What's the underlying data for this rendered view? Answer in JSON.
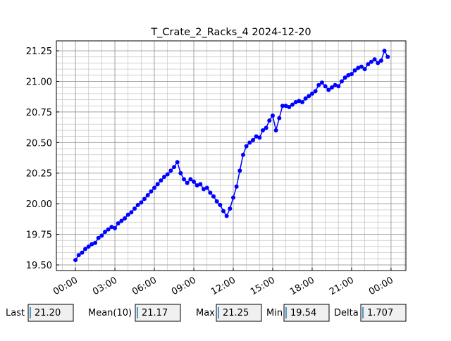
{
  "chart_data": {
    "type": "line",
    "title": "T_Crate_2_Racks_4 2024-12-20",
    "x": [
      0,
      0.25,
      0.5,
      0.75,
      1,
      1.25,
      1.5,
      1.75,
      2,
      2.25,
      2.5,
      2.75,
      3,
      3.25,
      3.5,
      3.75,
      4,
      4.25,
      4.5,
      4.75,
      5,
      5.25,
      5.5,
      5.75,
      6,
      6.25,
      6.5,
      6.75,
      7,
      7.25,
      7.5,
      7.75,
      8,
      8.25,
      8.5,
      8.75,
      9,
      9.25,
      9.5,
      9.75,
      10,
      10.25,
      10.5,
      10.75,
      11,
      11.25,
      11.5,
      11.75,
      12,
      12.25,
      12.5,
      12.75,
      13,
      13.25,
      13.5,
      13.75,
      14,
      14.25,
      14.5,
      14.75,
      15,
      15.25,
      15.5,
      15.75,
      16,
      16.25,
      16.5,
      16.75,
      17,
      17.25,
      17.5,
      17.75,
      18,
      18.25,
      18.5,
      18.75,
      19,
      19.25,
      19.5,
      19.75,
      20,
      20.25,
      20.5,
      20.75,
      21,
      21.25,
      21.5,
      21.75,
      22,
      22.25,
      22.5,
      22.75,
      23,
      23.25,
      23.5,
      23.75
    ],
    "series": [
      {
        "name": "T_Crate_2_Racks_4",
        "color": "#0000ff",
        "values": [
          19.54,
          19.58,
          19.6,
          19.63,
          19.65,
          19.67,
          19.68,
          19.72,
          19.74,
          19.77,
          19.79,
          19.81,
          19.8,
          19.84,
          19.86,
          19.88,
          19.91,
          19.93,
          19.96,
          19.99,
          20.01,
          20.04,
          20.07,
          20.1,
          20.13,
          20.16,
          20.19,
          20.22,
          20.24,
          20.27,
          20.3,
          20.34,
          20.25,
          20.2,
          20.17,
          20.2,
          20.18,
          20.15,
          20.16,
          20.12,
          20.13,
          20.09,
          20.06,
          20.02,
          19.99,
          19.94,
          19.9,
          19.96,
          20.05,
          20.14,
          20.27,
          20.4,
          20.47,
          20.5,
          20.52,
          20.55,
          20.54,
          20.6,
          20.62,
          20.68,
          20.72,
          20.6,
          20.7,
          20.8,
          20.8,
          20.79,
          20.81,
          20.83,
          20.84,
          20.83,
          20.86,
          20.88,
          20.9,
          20.92,
          20.97,
          20.99,
          20.96,
          20.93,
          20.95,
          20.97,
          20.96,
          21.0,
          21.03,
          21.05,
          21.06,
          21.09,
          21.11,
          21.12,
          21.1,
          21.14,
          21.16,
          21.18,
          21.15,
          21.17,
          21.25,
          21.2
        ]
      }
    ],
    "xlim": [
      -1.45,
      25.13
    ],
    "ylim": [
      19.454,
      21.331
    ],
    "xticks": [
      {
        "value": 0,
        "label": "00:00"
      },
      {
        "value": 3,
        "label": "03:00"
      },
      {
        "value": 6,
        "label": "06:00"
      },
      {
        "value": 9,
        "label": "09:00"
      },
      {
        "value": 12,
        "label": "12:00"
      },
      {
        "value": 15,
        "label": "15:00"
      },
      {
        "value": 18,
        "label": "18:00"
      },
      {
        "value": 21,
        "label": "21:00"
      },
      {
        "value": 24,
        "label": "00:00"
      }
    ],
    "yticks": [
      {
        "value": 19.5,
        "label": "19.50"
      },
      {
        "value": 19.75,
        "label": "19.75"
      },
      {
        "value": 20,
        "label": "20.00"
      },
      {
        "value": 20.25,
        "label": "20.25"
      },
      {
        "value": 20.5,
        "label": "20.50"
      },
      {
        "value": 20.75,
        "label": "20.75"
      },
      {
        "value": 21,
        "label": "21.00"
      },
      {
        "value": 21.25,
        "label": "21.25"
      }
    ],
    "grid": true,
    "minor_grid": true
  },
  "textboxes": [
    {
      "label": "Last",
      "value": "21.20"
    },
    {
      "label": "Mean(10)",
      "value": "21.17"
    },
    {
      "label": "Max",
      "value": "21.25"
    },
    {
      "label": "Min",
      "value": "19.54"
    },
    {
      "label": "Delta",
      "value": "1.707"
    }
  ]
}
